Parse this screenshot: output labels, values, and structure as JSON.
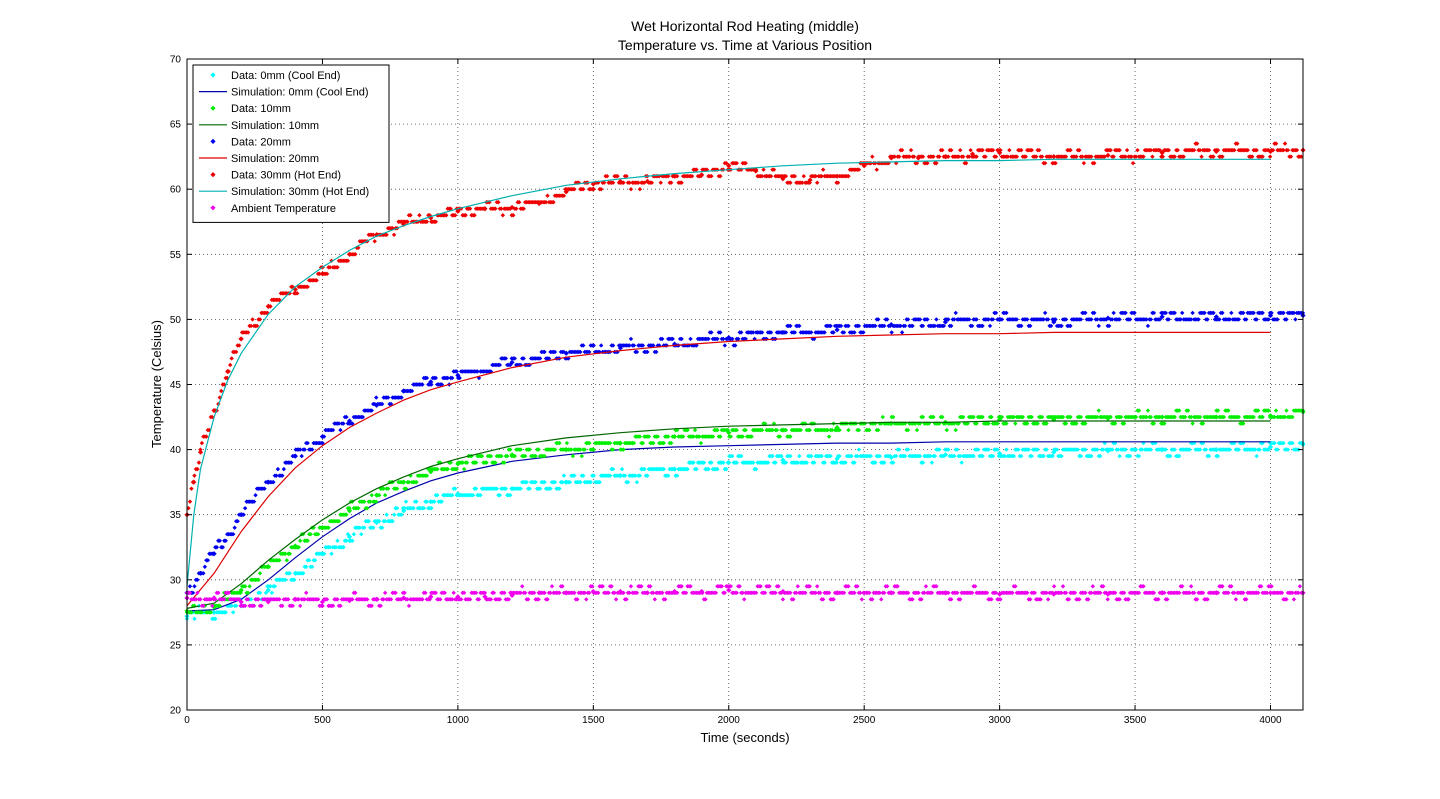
{
  "chart_data": {
    "type": "scatter",
    "title": "Wet Horizontal Rod Heating (middle)",
    "subtitle": "Temperature vs. Time at Various Position",
    "xlabel": "Time (seconds)",
    "ylabel": "Temperature (Celsius)",
    "xlim": [
      0,
      4120
    ],
    "ylim": [
      20,
      70
    ],
    "xticks": [
      0,
      500,
      1000,
      1500,
      2000,
      2500,
      3000,
      3500,
      4000
    ],
    "yticks": [
      20,
      25,
      30,
      35,
      40,
      45,
      50,
      55,
      60,
      65,
      70
    ],
    "grid": true,
    "legend_position": "top-left",
    "series": [
      {
        "name": "Data: 0mm (Cool End)",
        "kind": "markers",
        "color": "#00ffff",
        "x": [
          0,
          100,
          200,
          300,
          400,
          500,
          600,
          700,
          800,
          900,
          1000,
          1200,
          1400,
          1600,
          1800,
          2000,
          2200,
          2400,
          2600,
          2800,
          3000,
          3200,
          3400,
          3600,
          3800,
          4000,
          4120
        ],
        "y": [
          27.2,
          27.5,
          28.0,
          29.2,
          30.5,
          32.0,
          33.3,
          34.4,
          35.3,
          36.0,
          36.6,
          37.0,
          37.5,
          38.0,
          38.5,
          39.0,
          39.2,
          39.3,
          39.4,
          39.6,
          39.7,
          39.8,
          39.9,
          40.0,
          40.0,
          40.2,
          40.4
        ]
      },
      {
        "name": "Simulation: 0mm (Cool End)",
        "kind": "line",
        "color": "#0000aa",
        "x": [
          0,
          100,
          200,
          300,
          400,
          500,
          600,
          700,
          800,
          900,
          1000,
          1200,
          1400,
          1600,
          1800,
          2000,
          2200,
          2400,
          2600,
          2800,
          3000,
          3200,
          3400,
          3600,
          3800,
          4000
        ],
        "y": [
          27.6,
          27.7,
          28.5,
          30.0,
          31.7,
          33.3,
          34.7,
          35.9,
          36.8,
          37.6,
          38.2,
          39.1,
          39.6,
          40.0,
          40.2,
          40.3,
          40.4,
          40.5,
          40.5,
          40.6,
          40.6,
          40.6,
          40.6,
          40.6,
          40.6,
          40.6
        ]
      },
      {
        "name": "Data: 10mm",
        "kind": "markers",
        "color": "#00ee00",
        "x": [
          0,
          100,
          200,
          300,
          400,
          500,
          600,
          700,
          800,
          900,
          1000,
          1200,
          1400,
          1600,
          1800,
          2000,
          2200,
          2400,
          2600,
          2800,
          3000,
          3200,
          3400,
          3600,
          3800,
          4000,
          4120
        ],
        "y": [
          27.6,
          27.9,
          29.2,
          31.0,
          32.6,
          34.0,
          35.3,
          36.5,
          37.5,
          38.3,
          38.9,
          39.6,
          40.0,
          40.5,
          41.0,
          41.3,
          41.5,
          41.7,
          42.0,
          42.1,
          42.3,
          42.3,
          42.4,
          42.5,
          42.5,
          42.6,
          42.9
        ]
      },
      {
        "name": "Simulation: 10mm",
        "kind": "line",
        "color": "#006600",
        "x": [
          0,
          100,
          200,
          300,
          400,
          500,
          600,
          700,
          800,
          900,
          1000,
          1200,
          1400,
          1600,
          1800,
          2000,
          2200,
          2400,
          2600,
          2800,
          3000,
          3200,
          3400,
          3600,
          3800,
          4000
        ],
        "y": [
          27.8,
          28.2,
          29.7,
          31.5,
          33.1,
          34.6,
          35.9,
          37.0,
          37.9,
          38.7,
          39.3,
          40.3,
          40.9,
          41.3,
          41.6,
          41.8,
          41.9,
          42.0,
          42.1,
          42.1,
          42.2,
          42.2,
          42.2,
          42.2,
          42.2,
          42.2
        ]
      },
      {
        "name": "Data: 20mm",
        "kind": "markers",
        "color": "#0000ee",
        "x": [
          0,
          50,
          100,
          200,
          300,
          400,
          500,
          600,
          700,
          800,
          900,
          1000,
          1200,
          1400,
          1600,
          1800,
          2000,
          2200,
          2400,
          2600,
          2800,
          3000,
          3200,
          3400,
          3600,
          3800,
          4000,
          4120
        ],
        "y": [
          29.0,
          30.5,
          32.0,
          35.0,
          37.5,
          39.5,
          41.0,
          42.2,
          43.4,
          44.5,
          45.2,
          45.7,
          46.7,
          47.4,
          47.8,
          48.1,
          48.6,
          49.0,
          49.2,
          49.6,
          49.8,
          50.0,
          49.8,
          50.1,
          50.2,
          50.2,
          50.3,
          50.3
        ]
      },
      {
        "name": "Simulation: 20mm",
        "kind": "line",
        "color": "#dd0000",
        "x": [
          0,
          100,
          200,
          300,
          400,
          500,
          600,
          700,
          800,
          900,
          1000,
          1200,
          1400,
          1600,
          1800,
          2000,
          2200,
          2400,
          2600,
          2800,
          3000,
          3200,
          3400,
          3600,
          3800,
          4000
        ],
        "y": [
          28.0,
          30.5,
          33.7,
          36.4,
          38.6,
          40.3,
          41.7,
          42.8,
          43.8,
          44.6,
          45.2,
          46.3,
          47.1,
          47.6,
          48.0,
          48.3,
          48.5,
          48.7,
          48.8,
          48.9,
          48.9,
          49.0,
          49.0,
          49.0,
          49.0,
          49.0
        ]
      },
      {
        "name": "Data: 30mm (Hot End)",
        "kind": "markers",
        "color": "#ee0000",
        "x": [
          0,
          25,
          50,
          100,
          150,
          200,
          300,
          400,
          500,
          600,
          700,
          800,
          900,
          1000,
          1100,
          1200,
          1300,
          1400,
          1500,
          1600,
          1700,
          1800,
          1900,
          2000,
          2100,
          2200,
          2300,
          2400,
          2500,
          2600,
          2700,
          2800,
          2900,
          3000,
          3200,
          3400,
          3600,
          3800,
          4000,
          4120
        ],
        "y": [
          35.0,
          37.5,
          39.8,
          43.0,
          46.0,
          48.5,
          51.0,
          52.3,
          53.5,
          55.0,
          56.5,
          57.3,
          57.8,
          58.3,
          58.5,
          58.6,
          58.9,
          59.8,
          60.4,
          60.6,
          60.6,
          61.0,
          61.1,
          61.8,
          61.4,
          60.8,
          60.7,
          61.0,
          61.8,
          62.4,
          62.4,
          62.5,
          62.7,
          62.8,
          62.5,
          62.6,
          62.8,
          62.9,
          62.9,
          63.0
        ]
      },
      {
        "name": "Simulation: 30mm (Hot End)",
        "kind": "line",
        "color": "#00b0b0",
        "x": [
          0,
          25,
          50,
          100,
          150,
          200,
          300,
          400,
          500,
          600,
          700,
          800,
          900,
          1000,
          1200,
          1400,
          1600,
          1800,
          2000,
          2200,
          2400,
          2600,
          2800,
          3000,
          3200,
          3400,
          3600,
          3800,
          4000
        ],
        "y": [
          29.5,
          35.0,
          38.5,
          42.5,
          45.3,
          47.4,
          50.4,
          52.5,
          54.0,
          55.3,
          56.4,
          57.2,
          57.9,
          58.5,
          59.5,
          60.3,
          60.8,
          61.2,
          61.5,
          61.8,
          62.0,
          62.1,
          62.2,
          62.2,
          62.3,
          62.3,
          62.3,
          62.3,
          62.3
        ]
      },
      {
        "name": "Ambient Temperature",
        "kind": "markers",
        "color": "#ee00ee",
        "x": [
          0,
          100,
          200,
          300,
          400,
          500,
          600,
          700,
          800,
          900,
          1000,
          1100,
          1200,
          1300,
          1400,
          1500,
          1600,
          1700,
          1800,
          1900,
          2000,
          2200,
          2400,
          2600,
          2800,
          3000,
          3200,
          3400,
          3600,
          3800,
          4000,
          4120
        ],
        "y": [
          28.6,
          28.6,
          28.3,
          28.3,
          28.5,
          28.3,
          28.4,
          28.5,
          28.6,
          28.7,
          28.7,
          28.7,
          28.8,
          29.0,
          29.0,
          29.1,
          29.1,
          29.0,
          29.1,
          29.1,
          29.2,
          29.1,
          29.0,
          29.0,
          29.0,
          28.9,
          28.9,
          28.9,
          29.0,
          29.0,
          29.0,
          29.0
        ]
      }
    ]
  }
}
